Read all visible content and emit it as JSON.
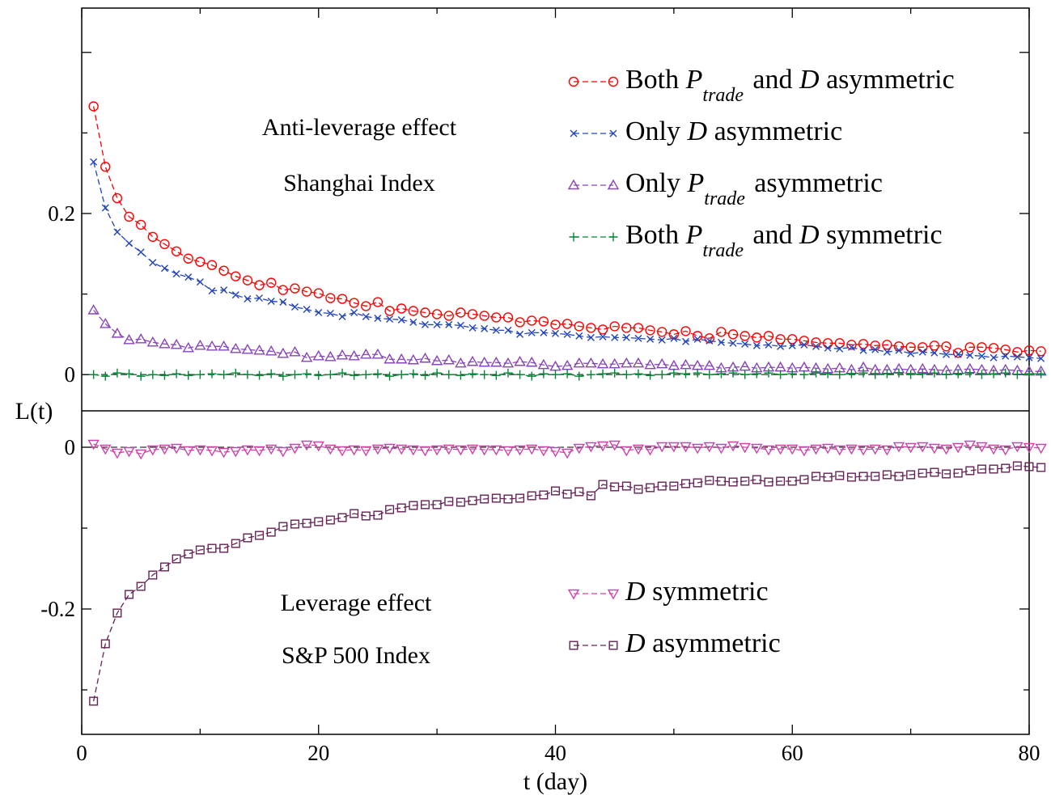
{
  "chart_data": {
    "type": "line",
    "xlabel": "t (day)",
    "ylabel": "L(t)",
    "x_ticks": [
      "0",
      "20",
      "40",
      "60",
      "80"
    ],
    "xlim": [
      0,
      80
    ],
    "grid": false,
    "panels": [
      {
        "name": "top",
        "ylim": [
          -0.045,
          0.455
        ],
        "y_ticks": [
          "0",
          "0.2"
        ],
        "zero_line": true,
        "annotations": [
          "Anti-leverage effect",
          "Shanghai Index"
        ],
        "legend_position": "top-right",
        "series": [
          {
            "name": "Both P_trade and D asymmetric",
            "legend": {
              "pre": "Both ",
              "var": "P",
              "sub": "trade",
              "post": " and ",
              "var2": "D",
              "end": " asymmetric"
            },
            "color": "#ff0000",
            "marker": "circle",
            "x_start": 1,
            "x_step": 1,
            "values": [
              0.333,
              0.258,
              0.219,
              0.196,
              0.186,
              0.171,
              0.162,
              0.153,
              0.144,
              0.14,
              0.136,
              0.129,
              0.122,
              0.117,
              0.111,
              0.114,
              0.105,
              0.107,
              0.103,
              0.101,
              0.095,
              0.094,
              0.089,
              0.085,
              0.09,
              0.079,
              0.082,
              0.079,
              0.077,
              0.075,
              0.073,
              0.077,
              0.075,
              0.073,
              0.071,
              0.071,
              0.065,
              0.067,
              0.066,
              0.062,
              0.063,
              0.06,
              0.058,
              0.056,
              0.06,
              0.058,
              0.058,
              0.055,
              0.053,
              0.05,
              0.054,
              0.048,
              0.045,
              0.053,
              0.05,
              0.048,
              0.046,
              0.048,
              0.044,
              0.044,
              0.042,
              0.04,
              0.039,
              0.039,
              0.037,
              0.038,
              0.036,
              0.037,
              0.035,
              0.034,
              0.034,
              0.036,
              0.035,
              0.027,
              0.034,
              0.034,
              0.033,
              0.031,
              0.028,
              0.03,
              0.029
            ]
          },
          {
            "name": "Only D asymmetric",
            "legend": {
              "pre": "Only ",
              "var": "D",
              "end": " asymmetric"
            },
            "color": "#2244bb",
            "marker": "x",
            "x_start": 1,
            "x_step": 1,
            "values": [
              0.264,
              0.207,
              0.177,
              0.163,
              0.152,
              0.139,
              0.132,
              0.125,
              0.121,
              0.115,
              0.104,
              0.105,
              0.099,
              0.094,
              0.095,
              0.091,
              0.09,
              0.084,
              0.081,
              0.077,
              0.076,
              0.072,
              0.077,
              0.072,
              0.07,
              0.069,
              0.068,
              0.065,
              0.062,
              0.062,
              0.062,
              0.061,
              0.058,
              0.057,
              0.055,
              0.055,
              0.05,
              0.052,
              0.052,
              0.051,
              0.05,
              0.048,
              0.046,
              0.047,
              0.046,
              0.046,
              0.045,
              0.044,
              0.043,
              0.045,
              0.041,
              0.044,
              0.042,
              0.04,
              0.039,
              0.038,
              0.036,
              0.037,
              0.035,
              0.036,
              0.037,
              0.035,
              0.033,
              0.032,
              0.034,
              0.03,
              0.031,
              0.028,
              0.03,
              0.026,
              0.028,
              0.027,
              0.025,
              0.025,
              0.024,
              0.023,
              0.021,
              0.023,
              0.022,
              0.021,
              0.02
            ]
          },
          {
            "name": "Only P_trade asymmetric",
            "legend": {
              "pre": "Only ",
              "var": "P",
              "sub": "trade",
              "end": " asymmetric"
            },
            "color": "#8844bb",
            "marker": "triangle-up",
            "x_start": 1,
            "x_step": 1,
            "values": [
              0.08,
              0.063,
              0.051,
              0.043,
              0.044,
              0.04,
              0.038,
              0.037,
              0.033,
              0.036,
              0.035,
              0.035,
              0.032,
              0.031,
              0.03,
              0.029,
              0.026,
              0.028,
              0.021,
              0.023,
              0.022,
              0.024,
              0.023,
              0.025,
              0.025,
              0.019,
              0.019,
              0.018,
              0.02,
              0.017,
              0.018,
              0.014,
              0.016,
              0.015,
              0.015,
              0.014,
              0.016,
              0.015,
              0.012,
              0.01,
              0.011,
              0.014,
              0.014,
              0.013,
              0.013,
              0.014,
              0.014,
              0.012,
              0.013,
              0.011,
              0.012,
              0.011,
              0.011,
              0.008,
              0.009,
              0.01,
              0.008,
              0.009,
              0.009,
              0.008,
              0.009,
              0.008,
              0.007,
              0.008,
              0.006,
              0.009,
              0.006,
              0.006,
              0.007,
              0.006,
              0.007,
              0.006,
              0.005,
              0.006,
              0.007,
              0.006,
              0.005,
              0.006,
              0.005,
              0.004,
              0.004
            ]
          },
          {
            "name": "Both P_trade and D symmetric",
            "legend": {
              "pre": "Both ",
              "var": "P",
              "sub": "trade",
              "post": " and ",
              "var2": "D",
              "end": " symmetric"
            },
            "color": "#008833",
            "marker": "plus",
            "x_start": 1,
            "x_step": 1,
            "values": [
              0.0,
              -0.002,
              0.002,
              0.001,
              -0.002,
              0.0,
              -0.001,
              0.001,
              -0.001,
              0.0,
              0.001,
              0.0,
              0.002,
              0.0,
              -0.001,
              0.001,
              -0.002,
              0.0,
              0.001,
              -0.001,
              0.0,
              0.002,
              -0.001,
              0.0,
              0.001,
              -0.002,
              0.0,
              0.001,
              -0.001,
              0.002,
              0.0,
              -0.001,
              0.001,
              0.0,
              -0.001,
              0.002,
              0.0,
              -0.002,
              0.001,
              0.0,
              0.001,
              -0.002,
              0.0,
              0.001,
              0.002,
              0.0,
              0.001,
              -0.001,
              0.0,
              0.002,
              0.001,
              0.002,
              0.0,
              0.001,
              0.002,
              0.0,
              0.001,
              0.002,
              0.0,
              0.001,
              0.0,
              0.002,
              0.001,
              0.0,
              0.001,
              0.002,
              0.0,
              0.001,
              0.002,
              0.0,
              0.001,
              0.002,
              0.0,
              0.001,
              0.002,
              0.0,
              0.001,
              0.002,
              0.0,
              0.001,
              0.001
            ]
          }
        ]
      },
      {
        "name": "bottom",
        "ylim": [
          -0.355,
          0.045
        ],
        "y_ticks": [
          "0",
          "-0.2"
        ],
        "zero_line": true,
        "annotations": [
          "Leverage effect",
          "S&P 500 Index"
        ],
        "legend_position": "bottom-right",
        "series": [
          {
            "name": "D symmetric",
            "legend": {
              "var": "D",
              "end": " symmetric"
            },
            "color": "#cc44aa",
            "marker": "triangle-down",
            "x_start": 1,
            "x_step": 1,
            "values": [
              0.004,
              -0.002,
              -0.007,
              -0.005,
              -0.008,
              -0.003,
              -0.002,
              -0.001,
              -0.004,
              -0.003,
              -0.004,
              -0.006,
              -0.005,
              -0.003,
              -0.004,
              -0.002,
              -0.005,
              -0.001,
              0.003,
              0.002,
              -0.002,
              -0.004,
              -0.003,
              -0.004,
              -0.002,
              -0.001,
              -0.002,
              -0.003,
              -0.004,
              -0.003,
              -0.002,
              -0.003,
              -0.002,
              -0.003,
              -0.003,
              -0.004,
              -0.003,
              -0.002,
              -0.004,
              -0.005,
              -0.007,
              -0.001,
              0.001,
              0.002,
              0.003,
              -0.004,
              -0.002,
              -0.003,
              0.001,
              0.001,
              0.001,
              -0.001,
              0.001,
              -0.001,
              0.002,
              0.0,
              -0.001,
              -0.003,
              -0.002,
              -0.002,
              -0.004,
              -0.002,
              -0.001,
              -0.003,
              -0.002,
              -0.003,
              -0.002,
              -0.003,
              0.001,
              0.0,
              0.001,
              -0.001,
              -0.002,
              0.0,
              0.003,
              0.001,
              -0.002,
              -0.003,
              0.001,
              0.0,
              -0.001
            ]
          },
          {
            "name": "D asymmetric",
            "legend": {
              "var": "D",
              "end": " asymmetric"
            },
            "color": "#662255",
            "marker": "square",
            "x_start": 1,
            "x_step": 1,
            "values": [
              -0.314,
              -0.243,
              -0.205,
              -0.182,
              -0.172,
              -0.158,
              -0.148,
              -0.138,
              -0.132,
              -0.127,
              -0.125,
              -0.125,
              -0.119,
              -0.112,
              -0.109,
              -0.105,
              -0.098,
              -0.095,
              -0.094,
              -0.092,
              -0.09,
              -0.087,
              -0.082,
              -0.085,
              -0.084,
              -0.077,
              -0.075,
              -0.072,
              -0.071,
              -0.071,
              -0.067,
              -0.068,
              -0.066,
              -0.064,
              -0.063,
              -0.064,
              -0.063,
              -0.06,
              -0.059,
              -0.054,
              -0.058,
              -0.055,
              -0.06,
              -0.046,
              -0.049,
              -0.048,
              -0.052,
              -0.05,
              -0.048,
              -0.048,
              -0.045,
              -0.044,
              -0.041,
              -0.042,
              -0.043,
              -0.042,
              -0.04,
              -0.043,
              -0.042,
              -0.042,
              -0.04,
              -0.036,
              -0.037,
              -0.035,
              -0.037,
              -0.036,
              -0.036,
              -0.034,
              -0.036,
              -0.034,
              -0.032,
              -0.031,
              -0.033,
              -0.032,
              -0.029,
              -0.027,
              -0.027,
              -0.026,
              -0.023,
              -0.024,
              -0.025
            ]
          }
        ]
      }
    ]
  }
}
